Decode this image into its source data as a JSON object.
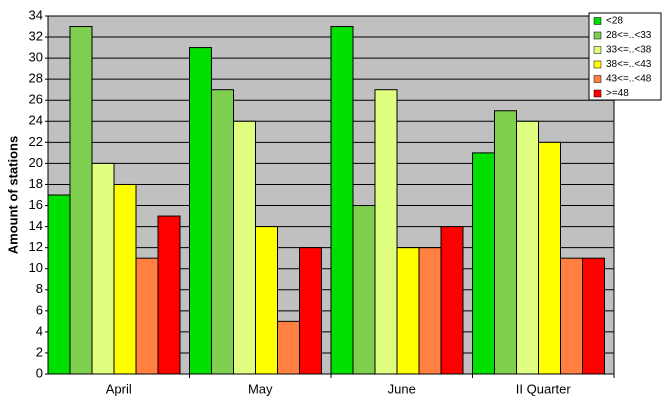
{
  "chart_data": {
    "type": "bar",
    "y_label": "Amount of stations",
    "categories": [
      "April",
      "May",
      "June",
      "II Quarter"
    ],
    "series": [
      {
        "name": "<28",
        "color": "#00e000",
        "values": [
          17,
          31,
          33,
          21
        ]
      },
      {
        "name": "28<=..<33",
        "color": "#80d050",
        "values": [
          33,
          27,
          16,
          25
        ]
      },
      {
        "name": "33<=..<38",
        "color": "#e0ff80",
        "values": [
          20,
          24,
          27,
          24
        ]
      },
      {
        "name": "38<=..<43",
        "color": "#ffff00",
        "values": [
          18,
          14,
          12,
          22
        ]
      },
      {
        "name": "43<=..<48",
        "color": "#ff8040",
        "values": [
          11,
          5,
          12,
          11
        ]
      },
      {
        "name": ">=48",
        "color": "#ff0000",
        "values": [
          15,
          12,
          14,
          11
        ]
      }
    ],
    "ylim": [
      0,
      34
    ],
    "yticks": [
      0,
      2,
      4,
      6,
      8,
      10,
      12,
      14,
      16,
      18,
      20,
      22,
      24,
      26,
      28,
      30,
      32,
      34
    ],
    "grid": true,
    "legend": "top-right",
    "plot_background": "#c0c0c0"
  }
}
